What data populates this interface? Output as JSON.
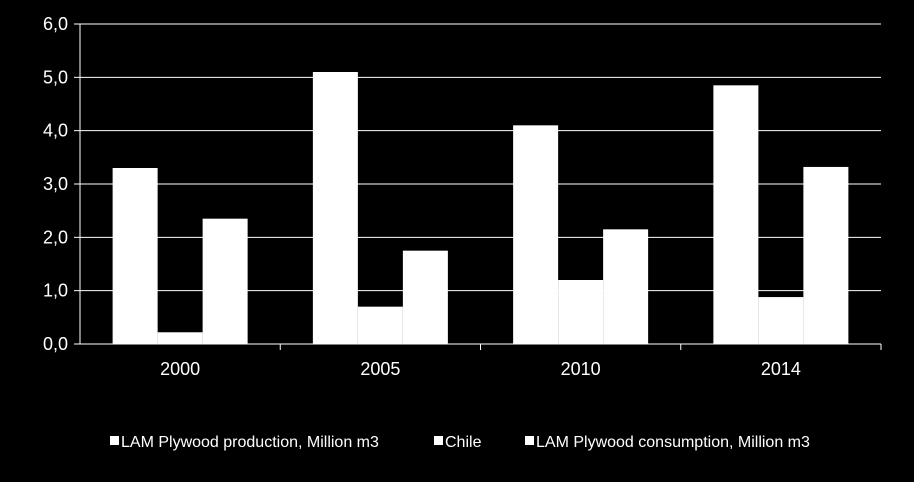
{
  "chart_data": {
    "type": "bar",
    "categories": [
      "2000",
      "2005",
      "2010",
      "2014"
    ],
    "series": [
      {
        "name": "LAM Plywood production, Million m3",
        "values": [
          3.3,
          5.1,
          4.1,
          4.85
        ],
        "color": "#ffffff"
      },
      {
        "name": "Chile",
        "values": [
          0.22,
          0.7,
          1.2,
          0.88
        ],
        "color": "#ffffff"
      },
      {
        "name": "LAM Plywood consumption, Million m3",
        "values": [
          2.35,
          1.75,
          2.15,
          3.32
        ],
        "color": "#ffffff"
      }
    ],
    "ylim": [
      0,
      6
    ],
    "yticks": [
      "0,0",
      "1,0",
      "2,0",
      "3,0",
      "4,0",
      "5,0",
      "6,0"
    ],
    "grid": true,
    "legend_position": "bottom",
    "background": "#000000",
    "axis_color": "#ffffff"
  }
}
